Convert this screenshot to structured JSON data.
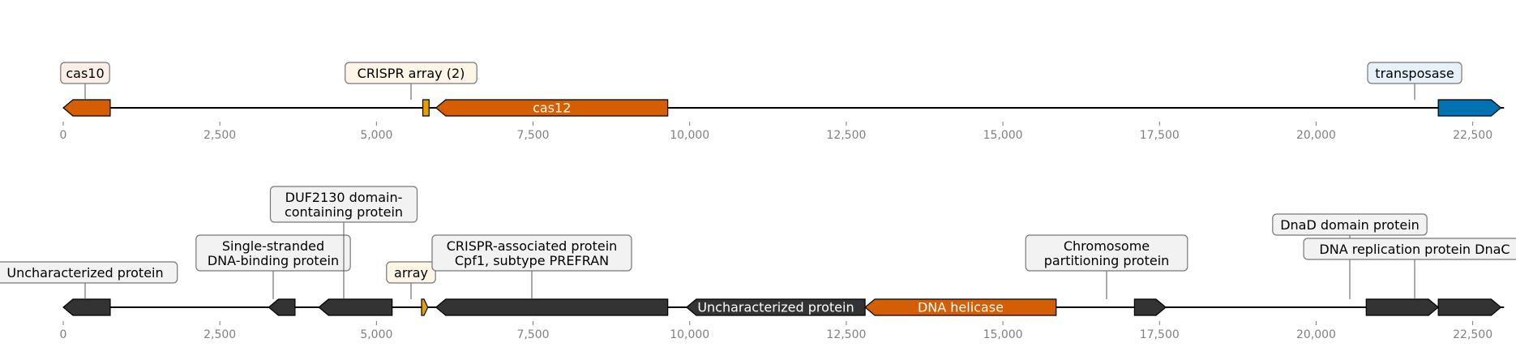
{
  "tracks": [
    {
      "id": "track1",
      "axis_ticks": [
        "0",
        "2,500",
        "5,000",
        "7,500",
        "10,000",
        "12,500",
        "15,000",
        "17,500",
        "20,000",
        "22,500"
      ],
      "features": [
        {
          "name": "cas10",
          "start": 0,
          "end": 750,
          "strand": -1,
          "color": "#d55e00",
          "label": "cas10",
          "label_style": "box",
          "box_fill": "#fbeee6"
        },
        {
          "name": "crispr-array",
          "start": 5740,
          "end": 5840,
          "strand": 0,
          "color": "#e69f00",
          "label": "CRISPR array (2)",
          "label_style": "box",
          "box_fill": "#fdf5e6"
        },
        {
          "name": "cas12",
          "start": 5950,
          "end": 9650,
          "strand": -1,
          "color": "#d55e00",
          "label": "cas12",
          "label_style": "inline"
        },
        {
          "name": "transposase",
          "start": 21950,
          "end": 22950,
          "strand": 1,
          "color": "#0072b2",
          "label": "transposase",
          "label_style": "box",
          "box_fill": "#e6f1f8"
        }
      ]
    },
    {
      "id": "track2",
      "axis_ticks": [
        "0",
        "2,500",
        "5,000",
        "7,500",
        "10,000",
        "12,500",
        "15,000",
        "17,500",
        "20,000",
        "22,500"
      ],
      "features": [
        {
          "name": "uncharacterized-protein-1",
          "start": 0,
          "end": 750,
          "strand": -1,
          "color": "#333333",
          "label": "Uncharacterized protein",
          "label_style": "box",
          "box_fill": "#f2f2f2"
        },
        {
          "name": "ssb",
          "start": 3280,
          "end": 3700,
          "strand": -1,
          "color": "#333333",
          "label": "Single-stranded\nDNA-binding protein",
          "label_style": "box",
          "box_fill": "#f2f2f2"
        },
        {
          "name": "duf2130",
          "start": 4080,
          "end": 5250,
          "strand": -1,
          "color": "#333333",
          "label": "DUF2130 domain-\ncontaining protein",
          "label_style": "box",
          "box_fill": "#f2f2f2"
        },
        {
          "name": "array",
          "start": 5720,
          "end": 5820,
          "strand": 1,
          "color": "#e69f00",
          "label": "array",
          "label_style": "box",
          "box_fill": "#fdf5e6"
        },
        {
          "name": "cpf1",
          "start": 5950,
          "end": 9650,
          "strand": -1,
          "color": "#333333",
          "label": "CRISPR-associated protein\nCpf1, subtype PREFRAN",
          "label_style": "box",
          "box_fill": "#f2f2f2"
        },
        {
          "name": "uncharacterized-protein-2",
          "start": 9950,
          "end": 12800,
          "strand": -1,
          "color": "#333333",
          "label": "Uncharacterized protein",
          "label_style": "inline"
        },
        {
          "name": "dna-helicase",
          "start": 12800,
          "end": 15850,
          "strand": -1,
          "color": "#d55e00",
          "label": "DNA helicase",
          "label_style": "inline"
        },
        {
          "name": "chromosome-partitioning",
          "start": 17100,
          "end": 17600,
          "strand": 1,
          "color": "#333333",
          "label": "Chromosome\npartitioning protein",
          "label_style": "box",
          "box_fill": "#f2f2f2"
        },
        {
          "name": "dnad-domain",
          "start": 20800,
          "end": 21950,
          "strand": 1,
          "color": "#333333",
          "label": "DnaD domain protein",
          "label_style": "box",
          "box_fill": "#f2f2f2"
        },
        {
          "name": "dnac",
          "start": 21950,
          "end": 22950,
          "strand": 1,
          "color": "#333333",
          "label": "DNA replication protein DnaC",
          "label_style": "box",
          "box_fill": "#f2f2f2"
        }
      ]
    }
  ]
}
